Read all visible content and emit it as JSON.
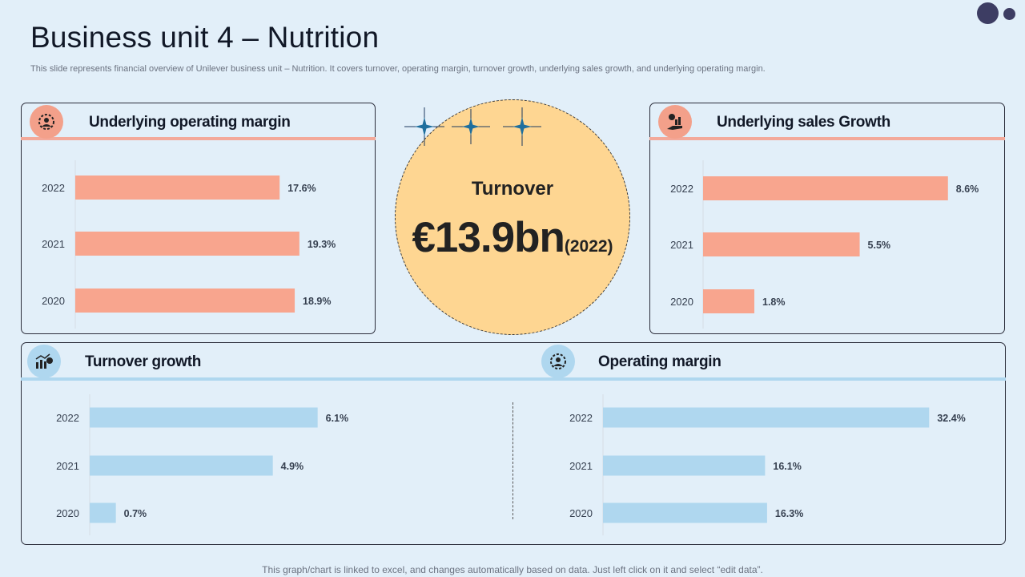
{
  "title": "Business unit 4 – Nutrition",
  "subtitle": "This slide represents financial overview of Unilever business unit – Nutrition. It covers turnover,  operating margin, turnover growth, underlying sales growth, and underlying operating margin.",
  "footer": "This graph/chart is linked to excel,  and changes automatically based on data. Just left click on it and select “edit data”.",
  "turnover": {
    "label": "Turnover",
    "value": "€13.9bn",
    "year": "(2022)"
  },
  "colors": {
    "orange_bar": "#f8a58e",
    "blue_bar": "#afd7ef",
    "circle": "#fed692"
  },
  "chart_data": [
    {
      "type": "bar",
      "title": "Underlying operating margin",
      "categories": [
        "2022",
        "2021",
        "2020"
      ],
      "values": [
        17.6,
        19.3,
        18.9
      ],
      "labels": [
        "17.6%",
        "19.3%",
        "18.9%"
      ],
      "unit": "%",
      "xlim": [
        0,
        20
      ]
    },
    {
      "type": "bar",
      "title": "Underlying sales Growth",
      "categories": [
        "2022",
        "2021",
        "2020"
      ],
      "values": [
        8.6,
        5.5,
        1.8
      ],
      "labels": [
        "8.6%",
        "5.5%",
        "1.8%"
      ],
      "unit": "%",
      "xlim": [
        0,
        9
      ]
    },
    {
      "type": "bar",
      "title": "Turnover growth",
      "categories": [
        "2022",
        "2021",
        "2020"
      ],
      "values": [
        6.1,
        4.9,
        0.7
      ],
      "labels": [
        "6.1%",
        "4.9%",
        "0.7%"
      ],
      "unit": "%",
      "xlim": [
        0,
        9
      ]
    },
    {
      "type": "bar",
      "title": "Operating margin",
      "categories": [
        "2022",
        "2021",
        "2020"
      ],
      "values": [
        32.4,
        16.1,
        16.3
      ],
      "labels": [
        "32.4%",
        "16.1%",
        "16.3%"
      ],
      "unit": "%",
      "xlim": [
        0,
        35
      ]
    }
  ]
}
